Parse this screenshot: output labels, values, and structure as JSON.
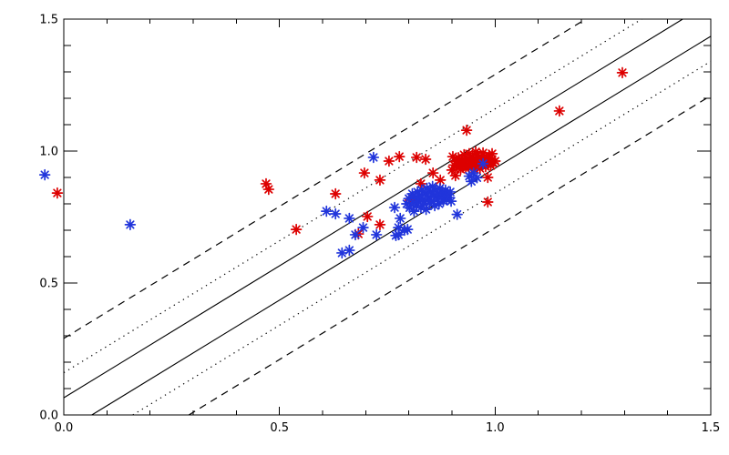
{
  "figure": {
    "background": "#ffffff",
    "axis_color": "#000000"
  },
  "chart_data": {
    "type": "scatter",
    "title": "",
    "xlabel": "",
    "ylabel": "",
    "xlim": [
      0.0,
      1.5
    ],
    "ylim": [
      0.0,
      1.5
    ],
    "grid": false,
    "legend": "none",
    "x_major_ticks": [
      0.0,
      0.5,
      1.0,
      1.5
    ],
    "x_tick_labels": [
      "0.0",
      "0.5",
      "1.0",
      "1.5"
    ],
    "y_major_ticks": [
      0.0,
      0.5,
      1.0,
      1.5
    ],
    "y_tick_labels": [
      "0.0",
      "0.5",
      "1.0",
      "1.5"
    ],
    "minor_tick_step": 0.1,
    "reference_lines": [
      {
        "name": "upper-solid",
        "style": "solid",
        "slope": 1,
        "intercept": 0.065
      },
      {
        "name": "lower-solid",
        "style": "solid",
        "slope": 1,
        "intercept": -0.065
      },
      {
        "name": "upper-dotted",
        "style": "dotted",
        "slope": 1,
        "intercept": 0.16
      },
      {
        "name": "lower-dotted",
        "style": "dotted",
        "slope": 1,
        "intercept": -0.16
      },
      {
        "name": "upper-dashed",
        "style": "dashed",
        "slope": 1,
        "intercept": 0.29
      },
      {
        "name": "lower-dashed",
        "style": "dashed",
        "slope": 1,
        "intercept": -0.29
      }
    ],
    "series": [
      {
        "name": "red-sample",
        "color": "#dd0000",
        "marker": "asterisk",
        "points": [
          [
            -0.015,
            0.841
          ],
          [
            0.469,
            0.876
          ],
          [
            0.475,
            0.855
          ],
          [
            0.539,
            0.703
          ],
          [
            0.63,
            0.838
          ],
          [
            0.697,
            0.917
          ],
          [
            0.733,
            0.89
          ],
          [
            0.754,
            0.962
          ],
          [
            0.818,
            0.976
          ],
          [
            0.839,
            0.969
          ],
          [
            0.902,
            0.979
          ],
          [
            0.934,
            1.079
          ],
          [
            1.149,
            1.152
          ],
          [
            1.295,
            1.297
          ],
          [
            0.983,
            0.9
          ],
          [
            0.983,
            0.807
          ],
          [
            0.704,
            0.752
          ],
          [
            0.733,
            0.721
          ],
          [
            0.683,
            0.686
          ],
          [
            0.828,
            0.876
          ],
          [
            0.803,
            0.814
          ],
          [
            0.873,
            0.89
          ],
          [
            0.856,
            0.917
          ],
          [
            0.778,
            0.979
          ],
          [
            0.908,
            0.907
          ],
          [
            0.9,
            0.928
          ],
          [
            0.905,
            0.947
          ],
          [
            0.91,
            0.962
          ],
          [
            0.912,
            0.938
          ],
          [
            0.915,
            0.975
          ],
          [
            0.918,
            0.952
          ],
          [
            0.92,
            0.931
          ],
          [
            0.922,
            0.966
          ],
          [
            0.925,
            0.945
          ],
          [
            0.928,
            0.986
          ],
          [
            0.93,
            0.955
          ],
          [
            0.932,
            0.934
          ],
          [
            0.935,
            0.972
          ],
          [
            0.938,
            0.948
          ],
          [
            0.94,
            0.99
          ],
          [
            0.942,
            0.962
          ],
          [
            0.945,
            0.938
          ],
          [
            0.948,
            0.979
          ],
          [
            0.95,
            0.955
          ],
          [
            0.952,
            0.931
          ],
          [
            0.955,
            0.969
          ],
          [
            0.958,
            0.948
          ],
          [
            0.96,
            0.986
          ],
          [
            0.962,
            0.959
          ],
          [
            0.965,
            0.934
          ],
          [
            0.968,
            0.976
          ],
          [
            0.97,
            0.952
          ],
          [
            0.972,
            0.993
          ],
          [
            0.975,
            0.962
          ],
          [
            0.978,
            0.941
          ],
          [
            0.98,
            0.972
          ],
          [
            0.983,
            0.952
          ],
          [
            0.986,
            0.983
          ],
          [
            0.988,
            0.962
          ],
          [
            0.99,
            0.945
          ],
          [
            0.993,
            0.969
          ],
          [
            0.996,
            0.955
          ],
          [
            1.0,
            0.962
          ],
          [
            0.955,
            0.997
          ],
          [
            0.993,
            0.99
          ]
        ]
      },
      {
        "name": "blue-sample",
        "color": "#2135db",
        "marker": "asterisk",
        "points": [
          [
            -0.044,
            0.91
          ],
          [
            0.154,
            0.721
          ],
          [
            0.718,
            0.976
          ],
          [
            0.609,
            0.772
          ],
          [
            0.63,
            0.762
          ],
          [
            0.662,
            0.745
          ],
          [
            0.694,
            0.71
          ],
          [
            0.676,
            0.683
          ],
          [
            0.725,
            0.683
          ],
          [
            0.645,
            0.614
          ],
          [
            0.662,
            0.624
          ],
          [
            0.776,
            0.71
          ],
          [
            0.797,
            0.703
          ],
          [
            0.776,
            0.683
          ],
          [
            0.767,
            0.786
          ],
          [
            0.78,
            0.745
          ],
          [
            0.79,
            0.7
          ],
          [
            0.77,
            0.68
          ],
          [
            0.912,
            0.76
          ],
          [
            0.94,
            0.905
          ],
          [
            0.95,
            0.917
          ],
          [
            0.958,
            0.899
          ],
          [
            0.945,
            0.885
          ],
          [
            0.972,
            0.952
          ],
          [
            0.795,
            0.8
          ],
          [
            0.8,
            0.82
          ],
          [
            0.802,
            0.785
          ],
          [
            0.808,
            0.838
          ],
          [
            0.81,
            0.805
          ],
          [
            0.812,
            0.772
          ],
          [
            0.815,
            0.824
          ],
          [
            0.818,
            0.793
          ],
          [
            0.82,
            0.845
          ],
          [
            0.822,
            0.81
          ],
          [
            0.825,
            0.831
          ],
          [
            0.828,
            0.786
          ],
          [
            0.83,
            0.852
          ],
          [
            0.832,
            0.817
          ],
          [
            0.835,
            0.8
          ],
          [
            0.838,
            0.838
          ],
          [
            0.84,
            0.779
          ],
          [
            0.842,
            0.859
          ],
          [
            0.845,
            0.824
          ],
          [
            0.848,
            0.803
          ],
          [
            0.85,
            0.845
          ],
          [
            0.852,
            0.81
          ],
          [
            0.855,
            0.866
          ],
          [
            0.858,
            0.831
          ],
          [
            0.86,
            0.793
          ],
          [
            0.862,
            0.852
          ],
          [
            0.865,
            0.817
          ],
          [
            0.868,
            0.838
          ],
          [
            0.87,
            0.8
          ],
          [
            0.872,
            0.859
          ],
          [
            0.875,
            0.824
          ],
          [
            0.878,
            0.845
          ],
          [
            0.88,
            0.81
          ],
          [
            0.882,
            0.831
          ],
          [
            0.885,
            0.852
          ],
          [
            0.888,
            0.817
          ],
          [
            0.89,
            0.838
          ],
          [
            0.893,
            0.824
          ],
          [
            0.896,
            0.845
          ],
          [
            0.898,
            0.81
          ]
        ]
      }
    ]
  }
}
